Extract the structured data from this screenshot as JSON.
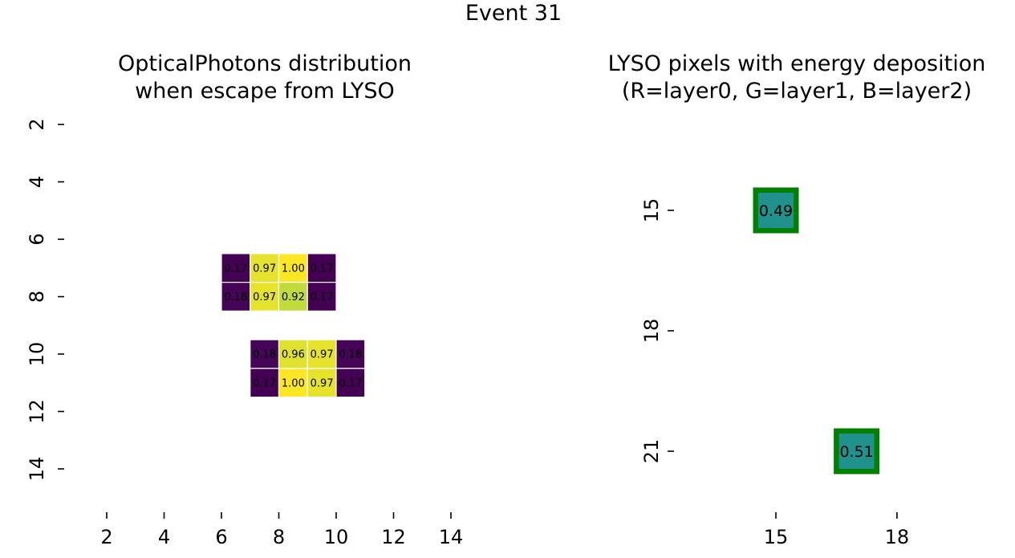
{
  "figure": {
    "suptitle": "Event 31"
  },
  "chart_data": [
    {
      "type": "heatmap",
      "title_lines": [
        "OpticalPhotons distribution",
        "when escape from LYSO"
      ],
      "x_ticks": [
        2,
        4,
        6,
        8,
        10,
        12,
        14
      ],
      "y_ticks": [
        2,
        4,
        6,
        8,
        10,
        12,
        14
      ],
      "xlim": [
        1,
        16
      ],
      "ylim": [
        1,
        16
      ],
      "grid": false,
      "colormap": "viridis",
      "cells": [
        {
          "x": 6,
          "y": 7,
          "value": 0.17,
          "label": "0.17"
        },
        {
          "x": 7,
          "y": 7,
          "value": 0.97,
          "label": "0.97"
        },
        {
          "x": 8,
          "y": 7,
          "value": 1.0,
          "label": "1.00"
        },
        {
          "x": 9,
          "y": 7,
          "value": 0.17,
          "label": "0.17"
        },
        {
          "x": 6,
          "y": 8,
          "value": 0.18,
          "label": "0.18"
        },
        {
          "x": 7,
          "y": 8,
          "value": 0.97,
          "label": "0.97"
        },
        {
          "x": 8,
          "y": 8,
          "value": 0.92,
          "label": "0.92"
        },
        {
          "x": 9,
          "y": 8,
          "value": 0.17,
          "label": "0.17"
        },
        {
          "x": 7,
          "y": 10,
          "value": 0.18,
          "label": "0.18"
        },
        {
          "x": 8,
          "y": 10,
          "value": 0.96,
          "label": "0.96"
        },
        {
          "x": 9,
          "y": 10,
          "value": 0.97,
          "label": "0.97"
        },
        {
          "x": 10,
          "y": 10,
          "value": 0.18,
          "label": "0.18"
        },
        {
          "x": 7,
          "y": 11,
          "value": 0.17,
          "label": "0.17"
        },
        {
          "x": 8,
          "y": 11,
          "value": 1.0,
          "label": "1.00"
        },
        {
          "x": 9,
          "y": 11,
          "value": 0.97,
          "label": "0.97"
        },
        {
          "x": 10,
          "y": 11,
          "value": 0.17,
          "label": "0.17"
        }
      ]
    },
    {
      "type": "heatmap",
      "title_lines": [
        "LYSO pixels with energy deposition",
        "(R=layer0, G=layer1, B=layer2)"
      ],
      "x_ticks": [
        15,
        18
      ],
      "y_ticks": [
        15,
        18,
        21
      ],
      "xlim": [
        12,
        22.5
      ],
      "ylim": [
        12,
        22
      ],
      "grid": false,
      "cells": [
        {
          "x": 15,
          "y": 15,
          "value": 0.49,
          "label": "0.49",
          "fill": "#20918c",
          "border": "#008000"
        },
        {
          "x": 17,
          "y": 21,
          "value": 0.51,
          "label": "0.51",
          "fill": "#20918c",
          "border": "#008000"
        }
      ]
    }
  ]
}
